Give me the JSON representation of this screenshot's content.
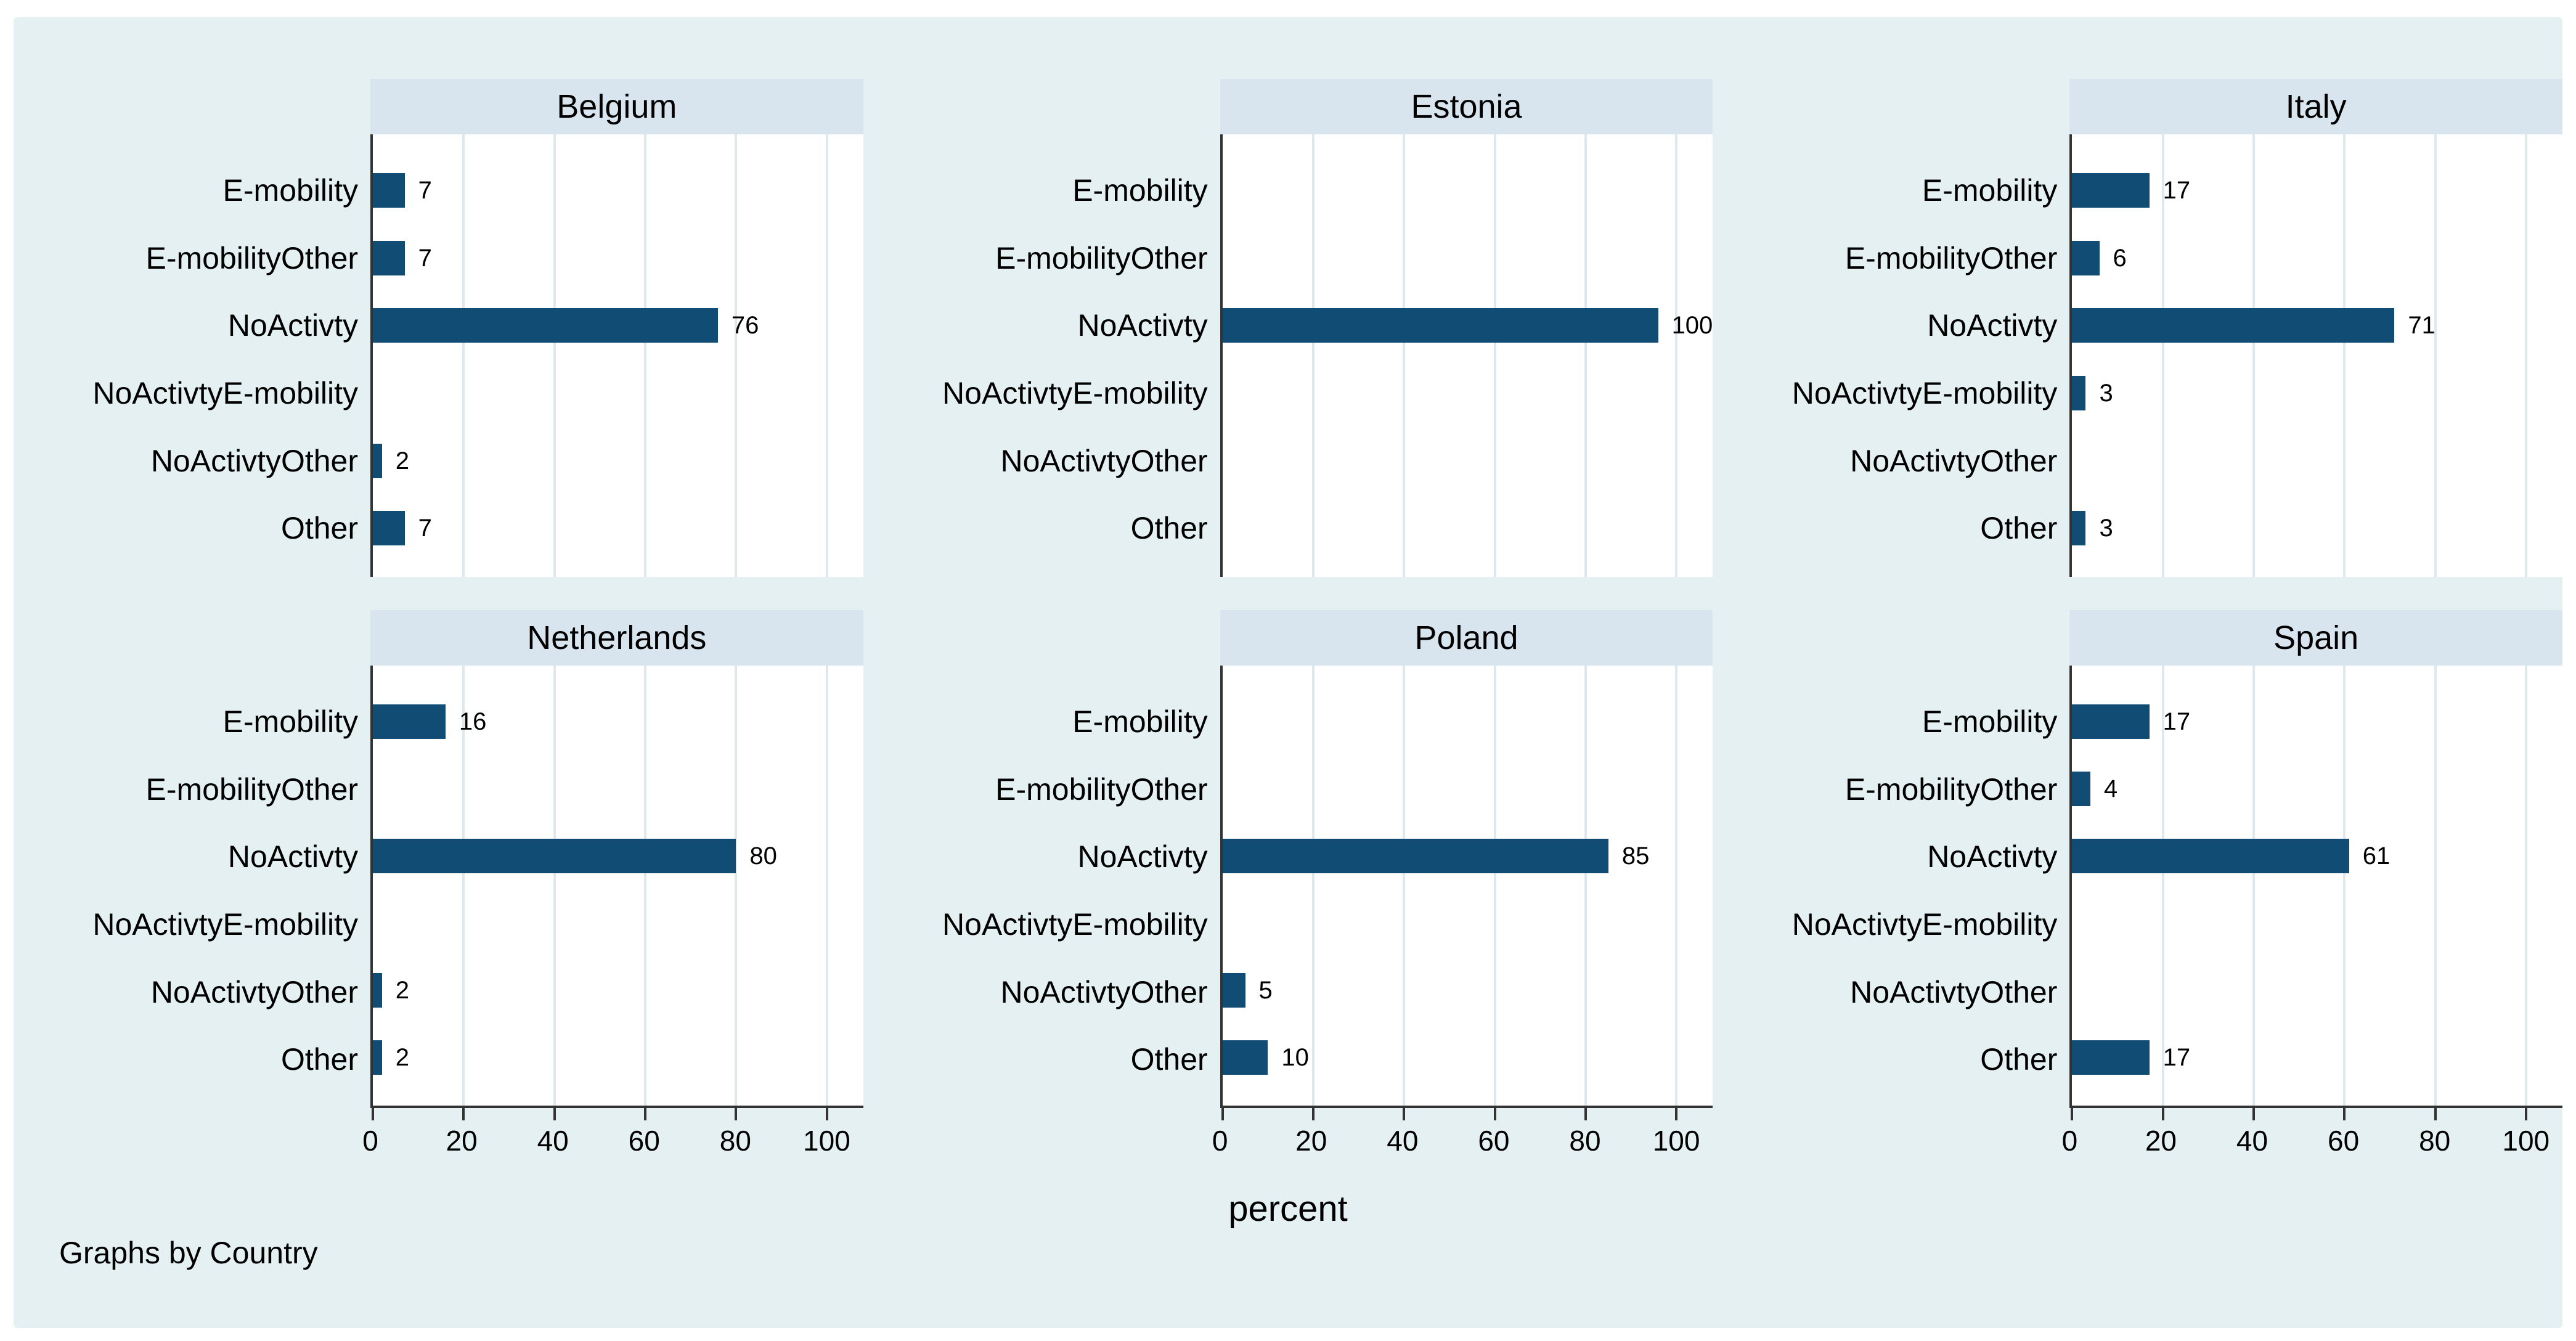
{
  "chart_data": {
    "type": "bar",
    "orientation": "horizontal",
    "layout": "small-multiples 2 rows x 3 columns, grouped by country",
    "categories": [
      "E-mobility",
      "E-mobilityOther",
      "NoActivty",
      "NoActivtyE-mobility",
      "NoActivtyOther",
      "Other"
    ],
    "panels": [
      {
        "title": "Belgium",
        "values": [
          7,
          7,
          76,
          0,
          2,
          7
        ]
      },
      {
        "title": "Estonia",
        "values": [
          0,
          0,
          100,
          0,
          0,
          0
        ]
      },
      {
        "title": "Italy",
        "values": [
          17,
          6,
          71,
          3,
          0,
          3
        ]
      },
      {
        "title": "Netherlands",
        "values": [
          16,
          0,
          80,
          0,
          2,
          2
        ]
      },
      {
        "title": "Poland",
        "values": [
          0,
          0,
          85,
          0,
          5,
          10
        ]
      },
      {
        "title": "Spain",
        "values": [
          17,
          4,
          61,
          0,
          0,
          17
        ]
      }
    ],
    "x_ticks": [
      0,
      20,
      40,
      60,
      80,
      100
    ],
    "xlim": [
      0,
      108
    ],
    "xlabel": "percent",
    "note": "Graphs by Country",
    "value_labels": true,
    "grid": "vertical gridlines only",
    "legend": "none",
    "colors": {
      "bar": "#114c74",
      "figure_bg": "#e4f0f1",
      "title_band": "#d9e5ee",
      "plot_bg": "#ffffff",
      "gridline": "#dde9ec",
      "axis": "#333333",
      "text": "#000000"
    }
  }
}
